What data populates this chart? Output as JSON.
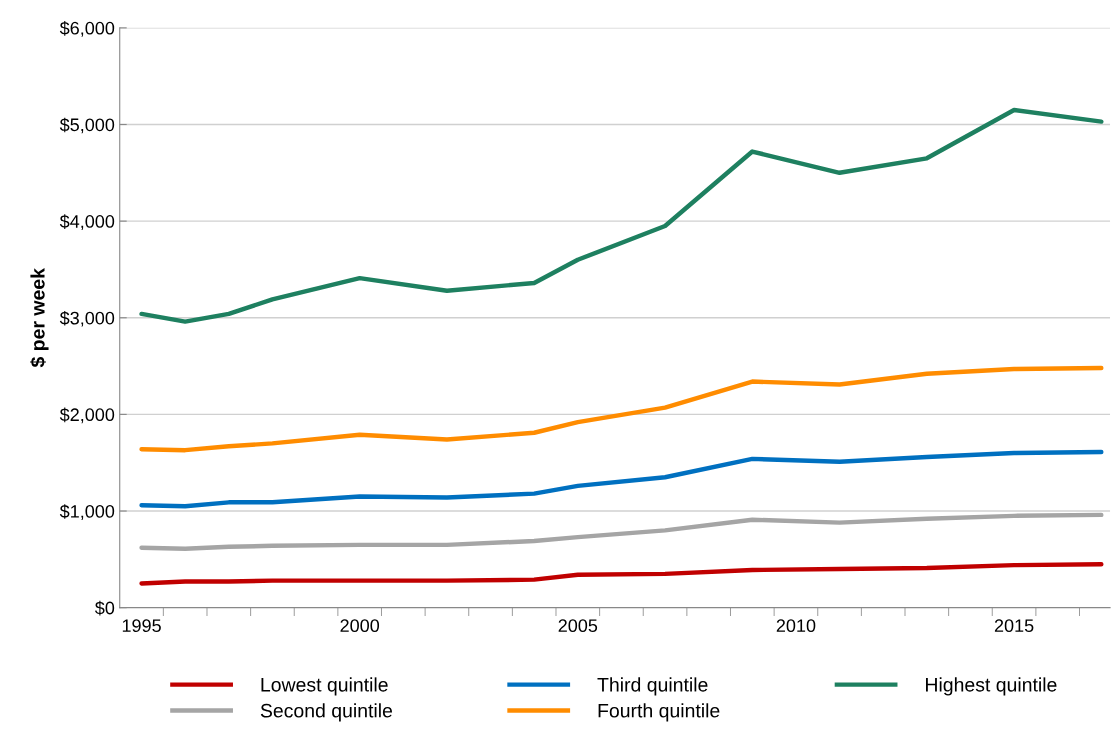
{
  "chart_data": {
    "type": "line",
    "ylabel": "$ per week",
    "x": [
      1995,
      1996,
      1997,
      1998,
      2000,
      2002,
      2004,
      2005,
      2007,
      2009,
      2011,
      2013,
      2015,
      2017
    ],
    "series": [
      {
        "name": "Lowest quintile",
        "color": "#c00000",
        "values": [
          250,
          270,
          270,
          280,
          280,
          280,
          290,
          340,
          350,
          390,
          400,
          410,
          440,
          450
        ]
      },
      {
        "name": "Second quintile",
        "color": "#a5a5a5",
        "values": [
          620,
          610,
          630,
          640,
          650,
          650,
          690,
          730,
          800,
          910,
          880,
          920,
          950,
          960
        ]
      },
      {
        "name": "Third quintile",
        "color": "#0070c0",
        "values": [
          1060,
          1050,
          1090,
          1090,
          1150,
          1140,
          1180,
          1260,
          1350,
          1540,
          1510,
          1560,
          1600,
          1610
        ]
      },
      {
        "name": "Fourth quintile",
        "color": "#ff8c00",
        "values": [
          1640,
          1630,
          1670,
          1700,
          1790,
          1740,
          1810,
          1920,
          2070,
          2340,
          2310,
          2420,
          2470,
          2480
        ]
      },
      {
        "name": "Highest quintile",
        "color": "#1e8060",
        "values": [
          3040,
          2960,
          3040,
          3190,
          3410,
          3280,
          3360,
          3600,
          3950,
          4720,
          4500,
          4650,
          5150,
          5030
        ]
      }
    ],
    "xlim": [
      1994.5,
      2017.2
    ],
    "xticks": [
      1995,
      2000,
      2005,
      2010,
      2015,
      {
        "value": 1995.5,
        "label": null
      },
      {
        "value": 1996.5,
        "label": null
      },
      {
        "value": 1997.5,
        "label": null
      },
      {
        "value": 1998.5,
        "label": null
      },
      {
        "value": 1999.5,
        "label": null
      },
      {
        "value": 2000.5,
        "label": null
      },
      {
        "value": 2001.5,
        "label": null
      },
      {
        "value": 2002.5,
        "label": null
      },
      {
        "value": 2003.5,
        "label": null
      },
      {
        "value": 2004.5,
        "label": null
      },
      {
        "value": 2005.5,
        "label": null
      },
      {
        "value": 2006.5,
        "label": null
      },
      {
        "value": 2007.5,
        "label": null
      },
      {
        "value": 2008.5,
        "label": null
      },
      {
        "value": 2009.5,
        "label": null
      },
      {
        "value": 2010.5,
        "label": null
      },
      {
        "value": 2011.5,
        "label": null
      },
      {
        "value": 2012.5,
        "label": null
      },
      {
        "value": 2013.5,
        "label": null
      },
      {
        "value": 2014.5,
        "label": null
      },
      {
        "value": 2015.5,
        "label": null
      },
      {
        "value": 2016.5,
        "label": null
      }
    ],
    "ylim": [
      0,
      6000
    ],
    "yticks": [
      {
        "value": 0,
        "label": "$0"
      },
      {
        "value": 1000,
        "label": "$1,000"
      },
      {
        "value": 2000,
        "label": "$2,000"
      },
      {
        "value": 3000,
        "label": "$3,000"
      },
      {
        "value": 4000,
        "label": "$4,000"
      },
      {
        "value": 5000,
        "label": "$5,000"
      },
      {
        "value": 6000,
        "label": "$6,000"
      }
    ],
    "grid": "y",
    "legend": "bottom",
    "marker": "none",
    "line_style": "solid"
  }
}
